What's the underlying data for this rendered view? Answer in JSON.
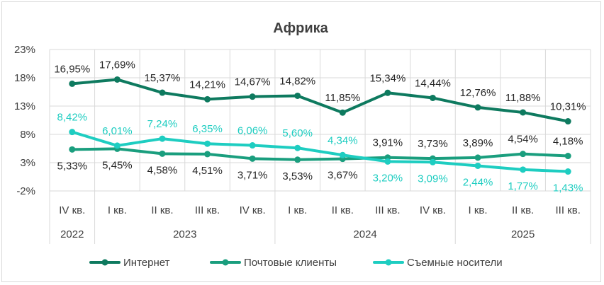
{
  "chart_data": {
    "type": "line",
    "title": "Африка",
    "categories": [
      "IV кв.",
      "I кв.",
      "II кв.",
      "III кв.",
      "IV кв.",
      "I кв.",
      "II кв.",
      "III кв.",
      "IV кв.",
      "I кв.",
      "II кв.",
      "III кв."
    ],
    "year_groups": [
      {
        "label": "2022",
        "start": 0,
        "end": 0
      },
      {
        "label": "2023",
        "start": 1,
        "end": 4
      },
      {
        "label": "2024",
        "start": 5,
        "end": 8
      },
      {
        "label": "2025",
        "start": 9,
        "end": 11
      }
    ],
    "ylim": [
      -2,
      23
    ],
    "yticks": [
      -2,
      3,
      8,
      13,
      18,
      23
    ],
    "ytick_labels": [
      "-2%",
      "3%",
      "8%",
      "13%",
      "18%",
      "23%"
    ],
    "grid": true,
    "legend_position": "bottom",
    "series": [
      {
        "name": "Интернет",
        "color": "#0e7a5f",
        "values": [
          16.95,
          17.69,
          15.37,
          14.21,
          14.67,
          14.82,
          11.85,
          15.34,
          14.44,
          12.76,
          11.88,
          10.31
        ],
        "labels": [
          "16,95%",
          "17,69%",
          "15,37%",
          "14,21%",
          "14,67%",
          "14,82%",
          "11,85%",
          "15,34%",
          "14,44%",
          "12,76%",
          "11,88%",
          "10,31%"
        ],
        "label_pos": "above"
      },
      {
        "name": "Почтовые клиенты",
        "color": "#1a9e7e",
        "values": [
          5.33,
          5.45,
          4.58,
          4.51,
          3.71,
          3.53,
          3.67,
          3.91,
          3.73,
          3.89,
          4.54,
          4.18
        ],
        "labels": [
          "5,33%",
          "5,45%",
          "4,58%",
          "4,51%",
          "3,71%",
          "3,53%",
          "3,67%",
          "3,91%",
          "3,73%",
          "3,89%",
          "4,54%",
          "4,18%"
        ],
        "label_pos": [
          "below",
          "below",
          "below",
          "below",
          "below",
          "below",
          "below",
          "above",
          "above",
          "above",
          "above",
          "above"
        ]
      },
      {
        "name": "Съемные носители",
        "color": "#1ecdc1",
        "values": [
          8.42,
          6.01,
          7.24,
          6.35,
          6.06,
          5.6,
          4.34,
          3.2,
          3.09,
          2.44,
          1.77,
          1.43
        ],
        "labels": [
          "8,42%",
          "6,01%",
          "7,24%",
          "6,35%",
          "6,06%",
          "5,60%",
          "4,34%",
          "3,20%",
          "3,09%",
          "2,44%",
          "1,77%",
          "1,43%"
        ],
        "label_pos": [
          "above",
          "above",
          "above",
          "above",
          "above",
          "above",
          "above",
          "below",
          "below",
          "below",
          "below",
          "below"
        ]
      }
    ]
  }
}
